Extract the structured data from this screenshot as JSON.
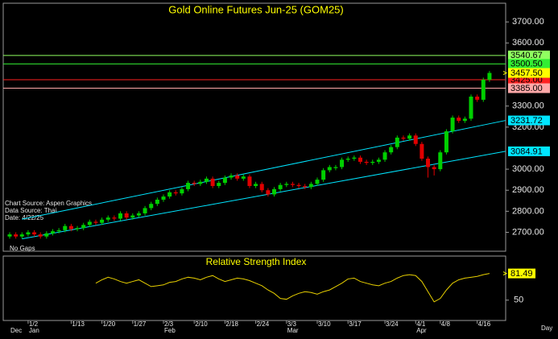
{
  "chart_data": {
    "type": "candlestick",
    "title": "Gold Online Futures Jun-25 (GOM25)",
    "categories": [
      null,
      null,
      null,
      "1/2",
      null,
      null,
      null,
      null,
      null,
      null,
      "1/13",
      null,
      null,
      null,
      null,
      "1/20",
      null,
      null,
      null,
      null,
      "1/27",
      null,
      null,
      null,
      null,
      "2/3",
      null,
      null,
      null,
      null,
      "2/10",
      null,
      null,
      null,
      null,
      "2/18",
      null,
      null,
      null,
      null,
      "2/24",
      null,
      null,
      null,
      null,
      "3/3",
      null,
      null,
      null,
      null,
      "3/10",
      null,
      null,
      null,
      null,
      "3/17",
      null,
      null,
      null,
      null,
      null,
      "3/24",
      null,
      null,
      null,
      null,
      "4/1",
      null,
      null,
      null,
      "4/8",
      null,
      null,
      null,
      null,
      null,
      "4/16",
      null,
      null
    ],
    "month_labels": [
      "Dec",
      null,
      null,
      "Jan",
      null,
      null,
      null,
      null,
      null,
      null,
      null,
      null,
      null,
      null,
      null,
      null,
      null,
      null,
      null,
      null,
      null,
      null,
      null,
      null,
      null,
      "Feb",
      null,
      null,
      null,
      null,
      null,
      null,
      null,
      null,
      null,
      null,
      null,
      null,
      null,
      null,
      null,
      null,
      null,
      null,
      null,
      "Mar",
      null,
      null,
      null,
      null,
      null,
      null,
      null,
      null,
      null,
      null,
      null,
      null,
      null,
      null,
      null,
      null,
      null,
      null,
      null,
      null,
      "Apr",
      null,
      null,
      null,
      null,
      null,
      null,
      null,
      null,
      null,
      null,
      null,
      null
    ],
    "open": [
      2680,
      2690,
      2680,
      2690,
      2700,
      2690,
      2680,
      2695,
      2705,
      2710,
      2730,
      2715,
      2720,
      2735,
      2750,
      2745,
      2760,
      2770,
      2765,
      2790,
      2770,
      2780,
      2790,
      2815,
      2835,
      2855,
      2870,
      2890,
      2885,
      2905,
      2935,
      2930,
      2940,
      2955,
      2920,
      2935,
      2960,
      2970,
      2955,
      2965,
      2920,
      2930,
      2900,
      2880,
      2905,
      2925,
      2930,
      2925,
      2920,
      2915,
      2930,
      2950,
      2995,
      3005,
      3010,
      3045,
      3050,
      3055,
      3035,
      3030,
      3035,
      3045,
      3080,
      3105,
      3150,
      3145,
      3160,
      3120,
      3050,
      3010,
      3000,
      3080,
      3180,
      3245,
      3230,
      3240,
      3345,
      3330,
      3425
    ],
    "high": [
      2700,
      2700,
      2700,
      2710,
      2710,
      2700,
      2705,
      2715,
      2720,
      2740,
      2740,
      2730,
      2745,
      2760,
      2760,
      2770,
      2780,
      2780,
      2800,
      2800,
      2790,
      2800,
      2825,
      2845,
      2865,
      2880,
      2900,
      2900,
      2915,
      2945,
      2945,
      2950,
      2965,
      2965,
      2945,
      2970,
      2980,
      2980,
      2975,
      2975,
      2940,
      2940,
      2910,
      2915,
      2935,
      2940,
      2940,
      2935,
      2930,
      2940,
      2960,
      3005,
      3020,
      3020,
      3055,
      3060,
      3065,
      3065,
      3045,
      3045,
      3055,
      3090,
      3115,
      3160,
      3160,
      3170,
      3170,
      3130,
      3060,
      3020,
      3090,
      3190,
      3255,
      3255,
      3250,
      3355,
      3355,
      3435,
      3467
    ],
    "low": [
      2670,
      2670,
      2670,
      2680,
      2680,
      2670,
      2670,
      2685,
      2695,
      2700,
      2705,
      2705,
      2710,
      2725,
      2735,
      2735,
      2750,
      2755,
      2755,
      2760,
      2760,
      2770,
      2780,
      2805,
      2825,
      2845,
      2860,
      2875,
      2875,
      2895,
      2920,
      2920,
      2930,
      2910,
      2910,
      2925,
      2950,
      2945,
      2945,
      2910,
      2910,
      2890,
      2870,
      2870,
      2895,
      2915,
      2915,
      2910,
      2905,
      2905,
      2920,
      2940,
      2985,
      2995,
      3000,
      3035,
      3040,
      3025,
      3020,
      3020,
      3025,
      3035,
      3070,
      3095,
      3135,
      3135,
      3110,
      3040,
      2960,
      2970,
      2990,
      3070,
      3170,
      3220,
      3220,
      3230,
      3320,
      3320,
      3415
    ],
    "close": [
      2690,
      2680,
      2690,
      2700,
      2690,
      2680,
      2695,
      2705,
      2710,
      2730,
      2715,
      2720,
      2735,
      2750,
      2745,
      2760,
      2770,
      2765,
      2790,
      2770,
      2780,
      2790,
      2815,
      2835,
      2855,
      2870,
      2890,
      2885,
      2905,
      2935,
      2930,
      2940,
      2955,
      2920,
      2935,
      2960,
      2970,
      2955,
      2965,
      2920,
      2930,
      2900,
      2880,
      2905,
      2925,
      2930,
      2925,
      2920,
      2915,
      2930,
      2950,
      2995,
      3010,
      3010,
      3045,
      3050,
      3055,
      3035,
      3030,
      3035,
      3045,
      3080,
      3105,
      3150,
      3145,
      3160,
      3120,
      3050,
      3010,
      3000,
      3080,
      3180,
      3245,
      3230,
      3240,
      3345,
      3330,
      3425,
      3457.5
    ],
    "last_price_label": "3457.50",
    "last_price_color": "#ffff00",
    "up_color": "#00d000",
    "down_color": "#e00000",
    "ylim": [
      2610,
      3785
    ],
    "yticks": [
      {
        "value": 2700,
        "label": "2700.00"
      },
      {
        "value": 2800,
        "label": "2800.00"
      },
      {
        "value": 2900,
        "label": "2900.00"
      },
      {
        "value": 3000,
        "label": "3000.00"
      },
      {
        "value": 3200,
        "label": "3200.00"
      },
      {
        "value": 3300,
        "label": "3300.00"
      },
      {
        "value": 3600,
        "label": "3600.00"
      },
      {
        "value": 3700,
        "label": "3700.00"
      }
    ],
    "levels": [
      {
        "value": 3540.67,
        "label": "3540.67",
        "color": "#90ff60"
      },
      {
        "value": 3500.5,
        "label": "3500.50",
        "color": "#33ee33"
      },
      {
        "value": 3425,
        "label": "3425.00",
        "color": "#ff2020"
      },
      {
        "value": 3385,
        "label": "3385.00",
        "color": "#ffa8a8"
      }
    ],
    "trendlines": [
      {
        "x0": 2,
        "y0": 2762,
        "y1": 3231.72,
        "label": "3231.72",
        "color": "#00e5ff"
      },
      {
        "x0": 2,
        "y0": 2669,
        "y1": 3084.91,
        "label": "3084.91",
        "color": "#00e5ff"
      }
    ],
    "annotations": [
      "Chart Source: Aspen Graphics",
      "Data Source: Thai",
      "Date:   4/22/25",
      "No Gaps"
    ],
    "x_label": "Day",
    "rsi": {
      "title": "Relative Strength Index",
      "color": "#e8d000",
      "label_color": "#ffff00",
      "ylim": [
        26,
        102
      ],
      "yticks": [
        50
      ],
      "values": [
        null,
        null,
        null,
        null,
        null,
        null,
        null,
        null,
        null,
        null,
        null,
        null,
        null,
        null,
        70,
        74,
        77,
        75,
        72,
        70,
        72,
        74,
        70,
        66,
        67,
        68,
        71,
        72,
        75,
        77,
        76,
        74,
        77,
        79,
        75,
        72,
        74,
        76,
        75,
        73,
        70,
        67,
        62,
        58,
        52,
        51,
        55,
        58,
        60,
        59,
        57,
        60,
        62,
        66,
        70,
        75,
        76,
        72,
        70,
        68,
        67,
        70,
        72,
        76,
        79,
        80,
        79,
        72,
        60,
        48,
        52,
        62,
        70,
        74,
        76,
        77,
        78,
        80,
        81.49
      ]
    }
  }
}
